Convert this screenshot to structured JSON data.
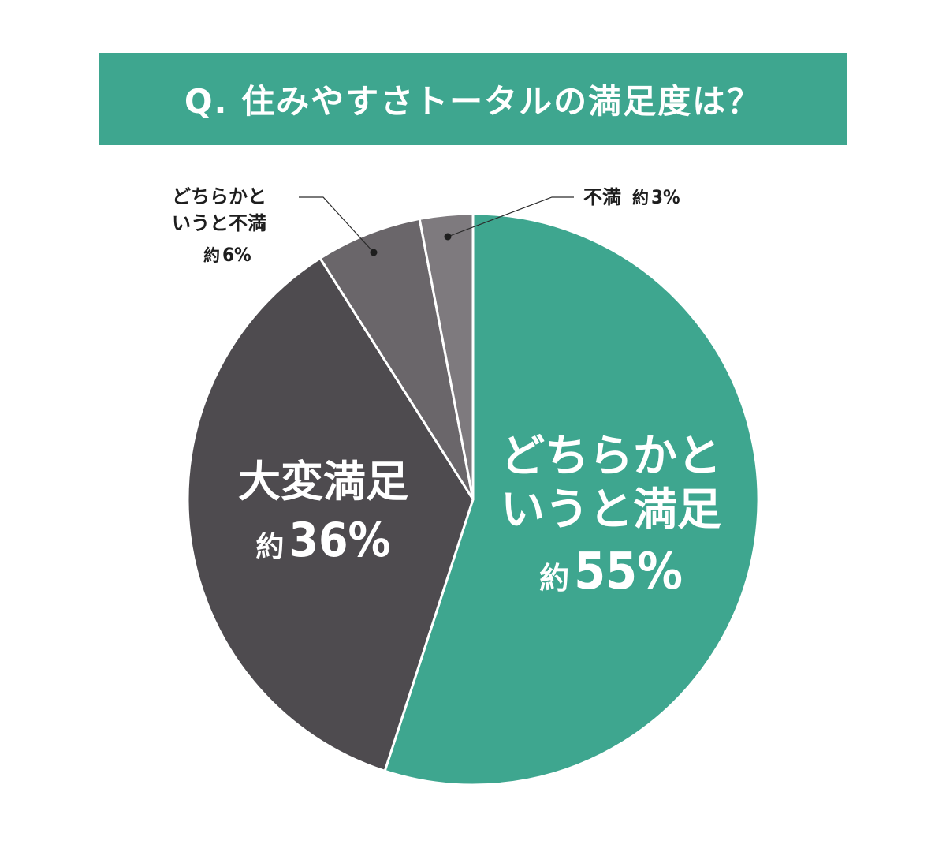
{
  "title": "Q. 住みやすさトータルの満足度は？",
  "chart_data": {
    "type": "pie",
    "title": "Q. 住みやすさトータルの満足度は？",
    "slices": [
      {
        "label": "どちらかというと満足",
        "value": 55,
        "display": "約55%",
        "color": "#3ea68f"
      },
      {
        "label": "大変満足",
        "value": 36,
        "display": "約36%",
        "color": "#4e4b4f"
      },
      {
        "label": "どちらかというと不満",
        "value": 6,
        "display": "約6%",
        "color": "#6a666a"
      },
      {
        "label": "不満",
        "value": 3,
        "display": "約3%",
        "color": "#7e7a7e"
      }
    ],
    "start": "12 o'clock",
    "direction": "clockwise"
  },
  "labels": {
    "satisfied_somewhat": {
      "line1": "どちらかと",
      "line2": "いうと満足",
      "prefix": "約",
      "pct": "55%"
    },
    "very_satisfied": {
      "line1": "大変満足",
      "prefix": "約",
      "pct": "36%"
    },
    "dissatisfied_somewhat": {
      "line1": "どちらかと",
      "line2": "いうと不満",
      "prefix": "約",
      "pct": "6%"
    },
    "dissatisfied": {
      "line1": "不満",
      "prefix": "約",
      "pct": "3%"
    }
  }
}
